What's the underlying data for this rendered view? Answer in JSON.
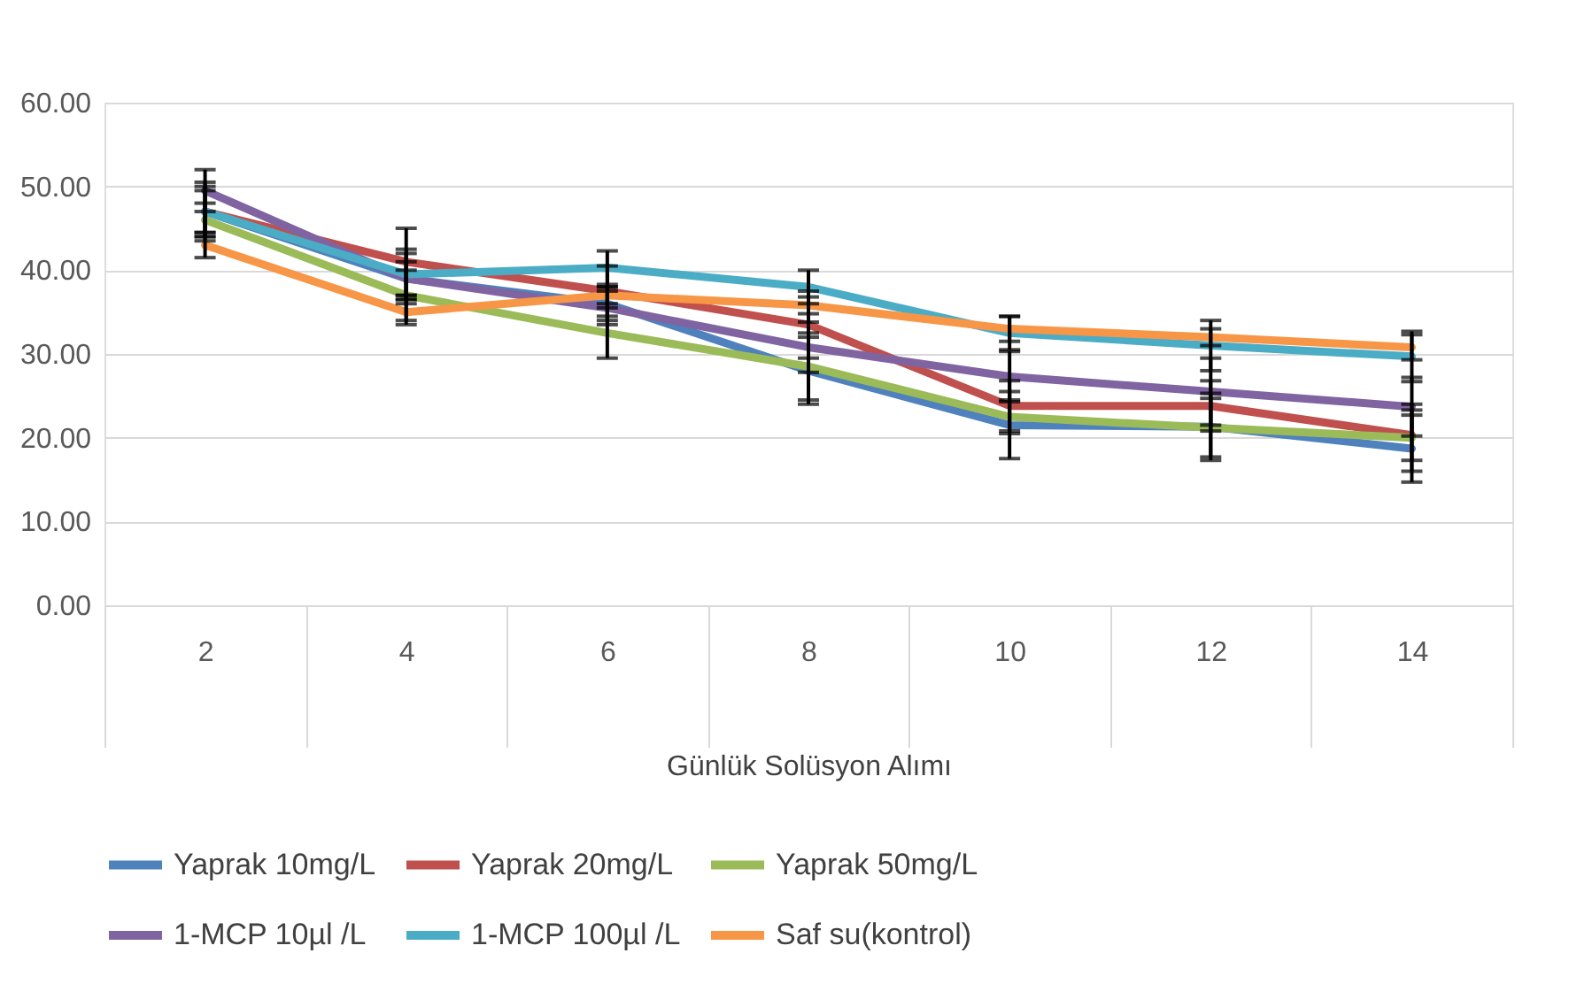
{
  "chart_data": {
    "type": "line",
    "xlabel": "Günlük Solüsyon Alımı",
    "categories": [
      "2",
      "4",
      "6",
      "8",
      "10",
      "12",
      "14"
    ],
    "ylim": [
      0,
      60
    ],
    "yticks": [
      {
        "value": 0,
        "label": "0.00"
      },
      {
        "value": 10,
        "label": "10.00"
      },
      {
        "value": 20,
        "label": "20.00"
      },
      {
        "value": 30,
        "label": "30.00"
      },
      {
        "value": 40,
        "label": "40.00"
      },
      {
        "value": 50,
        "label": "50.00"
      },
      {
        "value": 60,
        "label": "60.00"
      }
    ],
    "grid": "y",
    "legend": "bottom",
    "marker": "none",
    "line_style": "solid",
    "series": [
      {
        "name": "Yaprak 10mg/L",
        "color": "#4f81bd",
        "values": [
          47,
          39,
          36,
          28,
          21.5,
          21.3,
          18.7
        ],
        "errors": [
          3,
          3,
          2,
          4,
          4,
          4,
          4
        ]
      },
      {
        "name": "Yaprak 20mg/L",
        "color": "#c0504d",
        "values": [
          47,
          41,
          37.5,
          33.5,
          23.8,
          23.8,
          20.3
        ],
        "errors": [
          3.5,
          4,
          3,
          4,
          3,
          3,
          3
        ]
      },
      {
        "name": "Yaprak 50mg/L",
        "color": "#9bbb59",
        "values": [
          46,
          37,
          32.5,
          28.5,
          22.5,
          21.2,
          20
        ],
        "errors": [
          2,
          3,
          3,
          4,
          2,
          3.5,
          4
        ]
      },
      {
        "name": "1-MCP 10µl /L",
        "color": "#8064a2",
        "values": [
          49.5,
          39,
          35.5,
          30.8,
          27.3,
          25.5,
          23.7
        ],
        "errors": [
          2.5,
          2,
          2,
          3,
          3,
          4,
          3.5
        ]
      },
      {
        "name": "1-MCP 100µl /L",
        "color": "#4bacc6",
        "values": [
          47,
          39.5,
          40.3,
          38,
          32.5,
          31,
          29.7
        ],
        "errors": [
          2.5,
          3,
          2,
          2,
          2,
          3,
          3
        ]
      },
      {
        "name": "Saf su(kontrol)",
        "color": "#f79646",
        "values": [
          43,
          35,
          37,
          35.8,
          33,
          32,
          30.8
        ],
        "errors": [
          1.5,
          1.5,
          1,
          1,
          1.5,
          1,
          1.5
        ]
      }
    ]
  }
}
